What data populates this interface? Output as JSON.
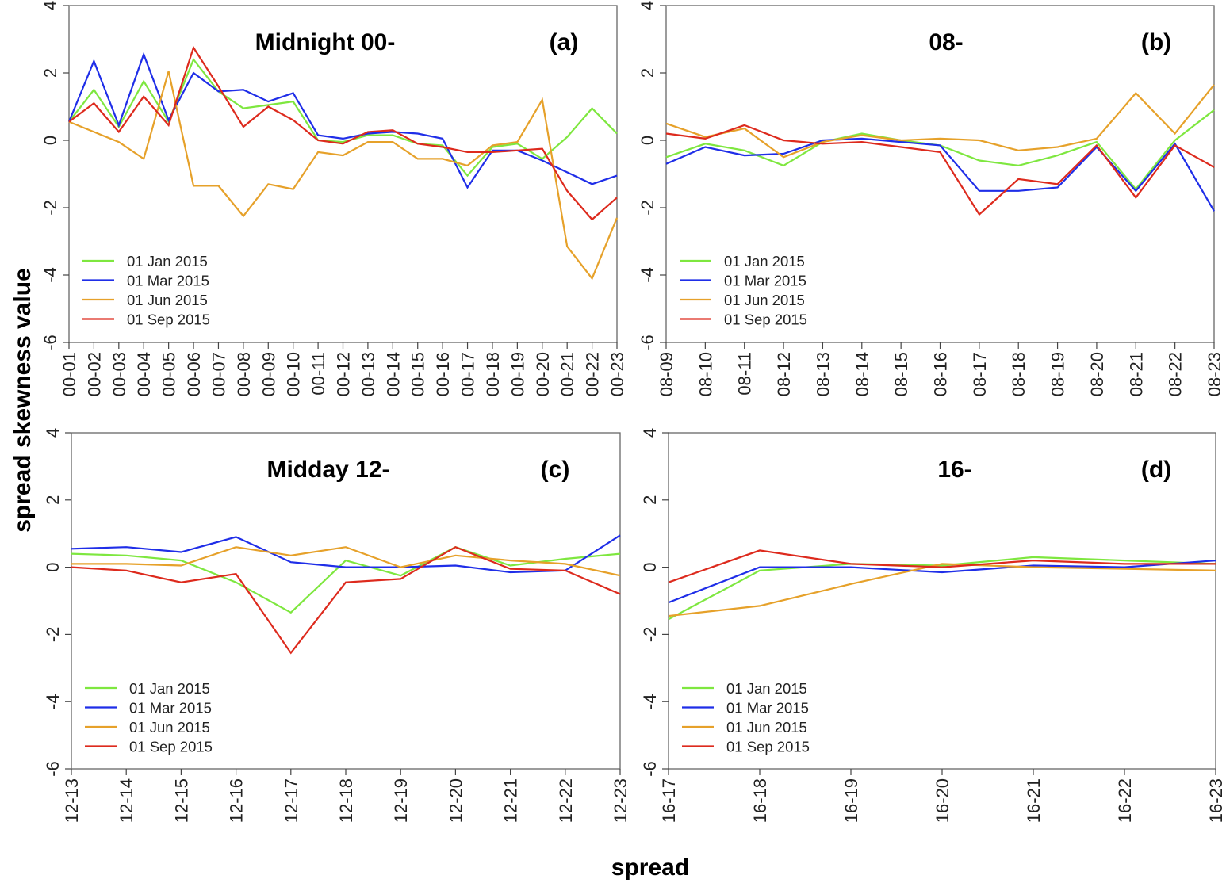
{
  "figure": {
    "ylabel": "spread skewness value",
    "xlabel": "spread"
  },
  "colors": {
    "jan": "#7ee73f",
    "mar": "#1f2ee8",
    "jun": "#e6a12a",
    "sep": "#dd2a1d"
  },
  "chart_data": [
    {
      "id": "a",
      "type": "line",
      "title": "Midnight 00-",
      "panel_label": "(a)",
      "ylim": [
        -6,
        4
      ],
      "yticks": [
        -6,
        -4,
        -2,
        0,
        2,
        4
      ],
      "legend_position": "bottom-left",
      "categories": [
        "00-01",
        "00-02",
        "00-03",
        "00-04",
        "00-05",
        "00-06",
        "00-07",
        "00-08",
        "00-09",
        "00-10",
        "00-11",
        "00-12",
        "00-13",
        "00-14",
        "00-15",
        "00-16",
        "00-17",
        "00-18",
        "00-19",
        "00-20",
        "00-21",
        "00-22",
        "00-23"
      ],
      "series": [
        {
          "name": "01 Jan 2015",
          "color_key": "jan",
          "values": [
            0.55,
            1.5,
            0.4,
            1.75,
            0.55,
            2.4,
            1.45,
            0.95,
            1.05,
            1.15,
            0.0,
            -0.05,
            0.15,
            0.15,
            -0.1,
            -0.15,
            -1.05,
            -0.2,
            -0.1,
            -0.55,
            0.1,
            0.95,
            0.2
          ]
        },
        {
          "name": "01 Mar 2015",
          "color_key": "mar",
          "values": [
            0.55,
            2.35,
            0.45,
            2.55,
            0.6,
            2.0,
            1.45,
            1.5,
            1.15,
            1.4,
            0.15,
            0.05,
            0.2,
            0.25,
            0.2,
            0.05,
            -1.4,
            -0.3,
            -0.3,
            -0.6,
            -0.95,
            -1.3,
            -1.05
          ]
        },
        {
          "name": "01 Jun 2015",
          "color_key": "jun",
          "values": [
            0.55,
            0.25,
            -0.05,
            -0.55,
            2.05,
            -1.35,
            -1.35,
            -2.25,
            -1.3,
            -1.45,
            -0.35,
            -0.45,
            -0.05,
            -0.05,
            -0.55,
            -0.55,
            -0.75,
            -0.15,
            -0.05,
            1.2,
            -3.15,
            -4.1,
            -2.3
          ]
        },
        {
          "name": "01 Sep 2015",
          "color_key": "sep",
          "values": [
            0.55,
            1.1,
            0.25,
            1.3,
            0.45,
            2.75,
            1.6,
            0.4,
            1.0,
            0.6,
            0.0,
            -0.1,
            0.25,
            0.3,
            -0.1,
            -0.2,
            -0.35,
            -0.35,
            -0.3,
            -0.25,
            -1.5,
            -2.35,
            -1.7
          ]
        }
      ]
    },
    {
      "id": "b",
      "type": "line",
      "title": "08-",
      "panel_label": "(b)",
      "ylim": [
        -6,
        4
      ],
      "yticks": [
        -6,
        -4,
        -2,
        0,
        2,
        4
      ],
      "legend_position": "bottom-left",
      "categories": [
        "08-09",
        "08-10",
        "08-11",
        "08-12",
        "08-13",
        "08-14",
        "08-15",
        "08-16",
        "08-17",
        "08-18",
        "08-19",
        "08-20",
        "08-21",
        "08-22",
        "08-23"
      ],
      "series": [
        {
          "name": "01 Jan 2015",
          "color_key": "jan",
          "values": [
            -0.5,
            -0.1,
            -0.3,
            -0.75,
            -0.05,
            0.2,
            0.0,
            -0.15,
            -0.6,
            -0.75,
            -0.45,
            -0.05,
            -1.45,
            0.0,
            0.9
          ]
        },
        {
          "name": "01 Mar 2015",
          "color_key": "mar",
          "values": [
            -0.7,
            -0.2,
            -0.45,
            -0.4,
            0.0,
            0.05,
            -0.05,
            -0.15,
            -1.5,
            -1.5,
            -1.4,
            -0.2,
            -1.5,
            -0.1,
            -2.1
          ]
        },
        {
          "name": "01 Jun 2015",
          "color_key": "jun",
          "values": [
            0.5,
            0.1,
            0.35,
            -0.5,
            -0.05,
            0.15,
            0.0,
            0.05,
            0.0,
            -0.3,
            -0.2,
            0.05,
            1.4,
            0.2,
            1.65
          ]
        },
        {
          "name": "01 Sep 2015",
          "color_key": "sep",
          "values": [
            0.2,
            0.05,
            0.45,
            0.0,
            -0.1,
            -0.05,
            -0.2,
            -0.35,
            -2.2,
            -1.15,
            -1.3,
            -0.15,
            -1.7,
            -0.15,
            -0.8
          ]
        }
      ]
    },
    {
      "id": "c",
      "type": "line",
      "title": "Midday 12-",
      "panel_label": "(c)",
      "ylim": [
        -6,
        4
      ],
      "yticks": [
        -6,
        -4,
        -2,
        0,
        2,
        4
      ],
      "legend_position": "bottom-left",
      "categories": [
        "12-13",
        "12-14",
        "12-15",
        "12-16",
        "12-17",
        "12-18",
        "12-19",
        "12-20",
        "12-21",
        "12-22",
        "12-23"
      ],
      "series": [
        {
          "name": "01 Jan 2015",
          "color_key": "jan",
          "values": [
            0.4,
            0.35,
            0.2,
            -0.45,
            -1.35,
            0.2,
            -0.25,
            0.6,
            0.05,
            0.25,
            0.4
          ]
        },
        {
          "name": "01 Mar 2015",
          "color_key": "mar",
          "values": [
            0.55,
            0.6,
            0.45,
            0.9,
            0.15,
            0.0,
            0.0,
            0.05,
            -0.15,
            -0.1,
            0.95
          ]
        },
        {
          "name": "01 Jun 2015",
          "color_key": "jun",
          "values": [
            0.1,
            0.1,
            0.05,
            0.6,
            0.35,
            0.6,
            0.0,
            0.35,
            0.2,
            0.1,
            -0.25
          ]
        },
        {
          "name": "01 Sep 2015",
          "color_key": "sep",
          "values": [
            0.0,
            -0.1,
            -0.45,
            -0.2,
            -2.55,
            -0.45,
            -0.35,
            0.6,
            -0.05,
            -0.1,
            -0.8
          ]
        }
      ]
    },
    {
      "id": "d",
      "type": "line",
      "title": "16-",
      "panel_label": "(d)",
      "ylim": [
        -6,
        4
      ],
      "yticks": [
        -6,
        -4,
        -2,
        0,
        2,
        4
      ],
      "legend_position": "bottom-left",
      "categories": [
        "16-17",
        "16-18",
        "16-19",
        "16-20",
        "16-21",
        "16-22",
        "16-23"
      ],
      "series": [
        {
          "name": "01 Jan 2015",
          "color_key": "jan",
          "values": [
            -1.55,
            -0.1,
            0.1,
            0.05,
            0.3,
            0.2,
            0.1
          ]
        },
        {
          "name": "01 Mar 2015",
          "color_key": "mar",
          "values": [
            -1.05,
            0.0,
            0.0,
            -0.15,
            0.05,
            0.0,
            0.2
          ]
        },
        {
          "name": "01 Jun 2015",
          "color_key": "jun",
          "values": [
            -1.45,
            -1.15,
            -0.5,
            0.1,
            0.0,
            -0.05,
            -0.1
          ]
        },
        {
          "name": "01 Sep 2015",
          "color_key": "sep",
          "values": [
            -0.45,
            0.5,
            0.1,
            0.0,
            0.2,
            0.1,
            0.1
          ]
        }
      ]
    }
  ]
}
